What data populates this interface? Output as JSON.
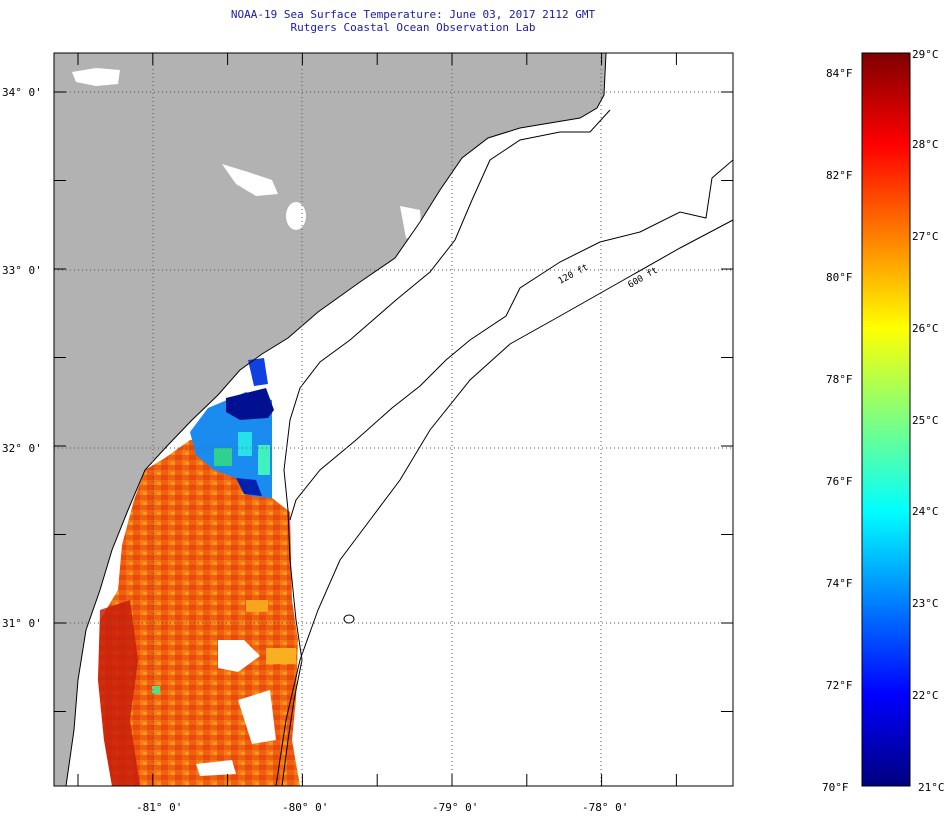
{
  "title": "NOAA-19 Sea Surface Temperature:  June 03, 2017 2112 GMT",
  "subtitle": "Rutgers Coastal Ocean Observation Lab",
  "map": {
    "lon_range": [
      -81.65,
      -77.2
    ],
    "lat_range": [
      30.2,
      34.2
    ],
    "lon_ticks": [
      {
        "value": -81,
        "label": "-81° 0'"
      },
      {
        "value": -80,
        "label": "-80° 0'"
      },
      {
        "value": -79,
        "label": "-79° 0'"
      },
      {
        "value": -78,
        "label": "-78° 0'"
      }
    ],
    "lat_ticks": [
      {
        "value": 34,
        "label": "34° 0'"
      },
      {
        "value": 33,
        "label": "33° 0'"
      },
      {
        "value": 32,
        "label": "32° 0'"
      },
      {
        "value": 31,
        "label": "31° 0'"
      }
    ],
    "contour_labels": [
      "120 ft",
      "600 ft"
    ],
    "colors": {
      "land": "#b2b2b2",
      "ocean_nodata": "#ffffff",
      "grid": "#555555"
    }
  },
  "colorbar": {
    "f_labels": [
      "84°F",
      "82°F",
      "80°F",
      "78°F",
      "76°F",
      "74°F",
      "72°F",
      "70°F"
    ],
    "c_labels": [
      "29°C",
      "28°C",
      "27°C",
      "26°C",
      "25°C",
      "24°C",
      "23°C",
      "22°C",
      "21°C"
    ],
    "c_range": [
      21,
      29
    ],
    "stops": [
      "#00007f",
      "#0000ff",
      "#007fff",
      "#00ffff",
      "#7fff7f",
      "#ffff00",
      "#ff7f00",
      "#ff0000",
      "#7f0000"
    ]
  }
}
